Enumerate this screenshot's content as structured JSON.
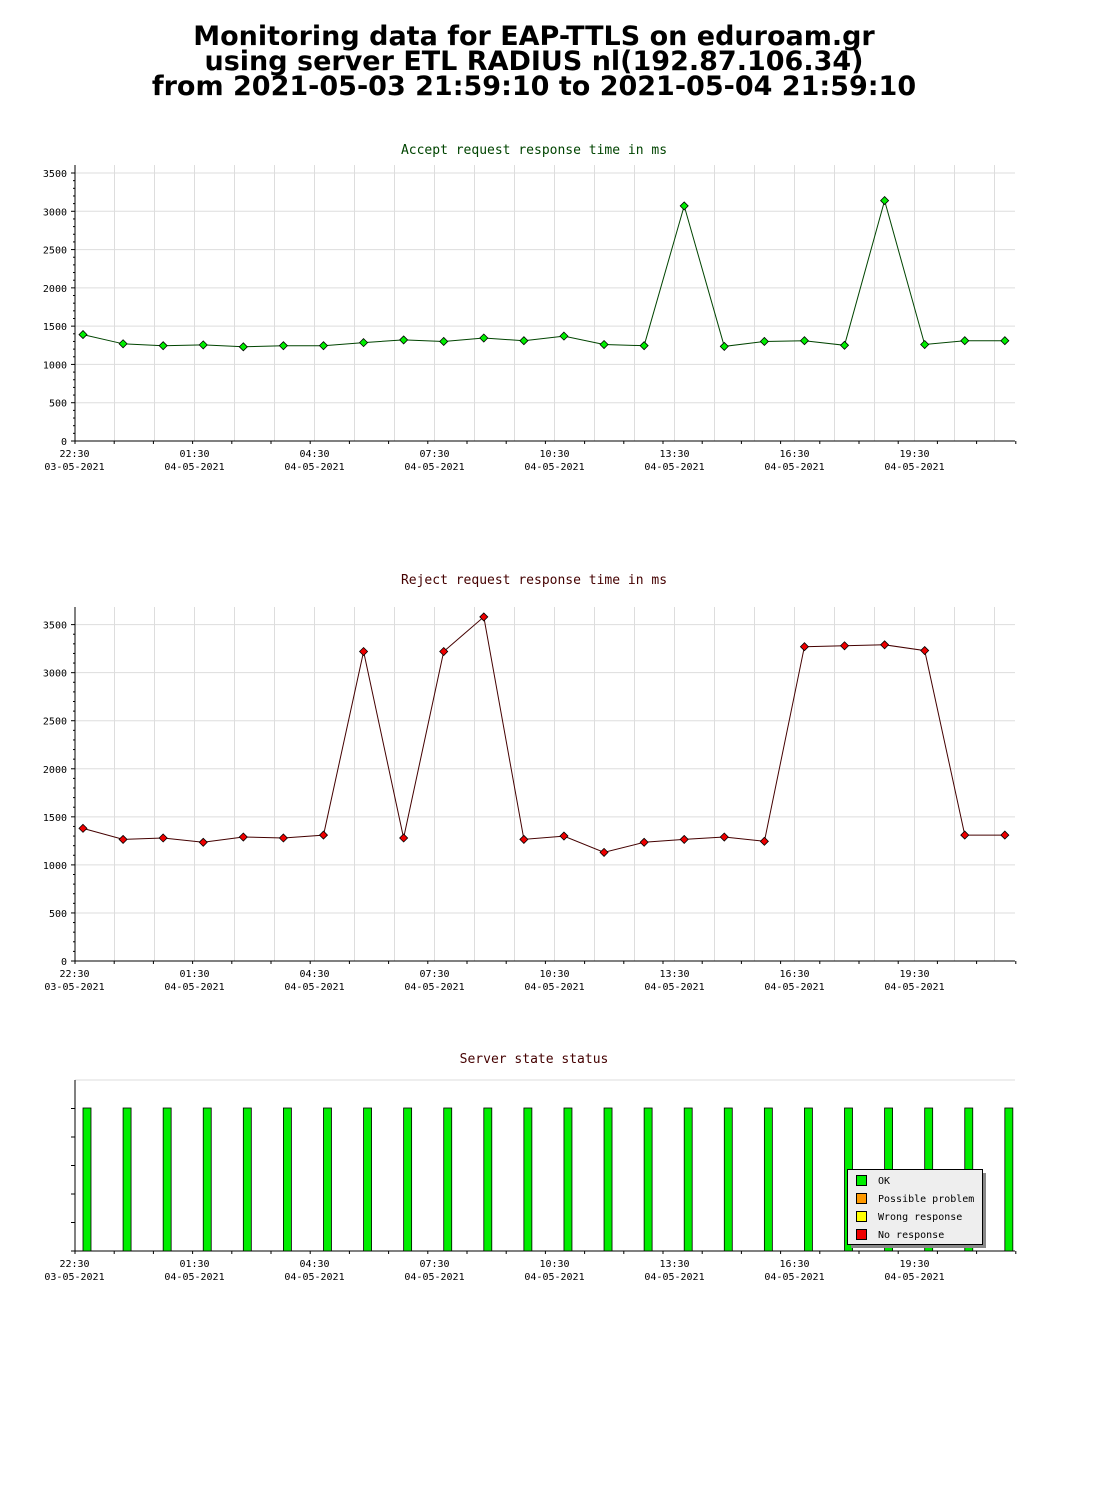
{
  "title": {
    "line1": "Monitoring data for EAP-TTLS on eduroam.gr",
    "line2": "using server ETL RADIUS nl(192.87.106.34)",
    "line3": "from 2021-05-03 21:59:10 to 2021-05-04 21:59:10"
  },
  "colors": {
    "accept_title": "#004400",
    "reject_title": "#440000",
    "status_title": "#440000",
    "accept_marker": "#00ee00",
    "accept_line": "#004400",
    "reject_marker": "#ee0000",
    "reject_line": "#440000",
    "ok": "#00ee00",
    "possible_problem": "#ff9900",
    "wrong_response": "#ffff00",
    "no_response": "#ee0000",
    "grid": "#dddddd"
  },
  "time_axis": {
    "ticks": [
      {
        "time": "22:30",
        "date": "03-05-2021"
      },
      {
        "time": "01:30",
        "date": "04-05-2021"
      },
      {
        "time": "04:30",
        "date": "04-05-2021"
      },
      {
        "time": "07:30",
        "date": "04-05-2021"
      },
      {
        "time": "10:30",
        "date": "04-05-2021"
      },
      {
        "time": "13:30",
        "date": "04-05-2021"
      },
      {
        "time": "16:30",
        "date": "04-05-2021"
      },
      {
        "time": "19:30",
        "date": "04-05-2021"
      }
    ]
  },
  "legend": {
    "ok": "OK",
    "possible_problem": "Possible problem",
    "wrong_response": "Wrong response",
    "no_response": "No response"
  },
  "chart_data": [
    {
      "type": "line",
      "title": "Accept request response time in ms",
      "ylim": [
        0,
        3500
      ],
      "yticks": [
        0,
        500,
        1000,
        1500,
        2000,
        2500,
        3000,
        3500
      ],
      "x": [
        "22:00",
        "23:00",
        "00:00",
        "01:00",
        "02:00",
        "03:00",
        "04:00",
        "05:00",
        "06:00",
        "07:00",
        "08:00",
        "09:00",
        "10:00",
        "11:00",
        "12:00",
        "13:00",
        "14:00",
        "15:00",
        "16:00",
        "17:00",
        "18:00",
        "19:00",
        "20:00",
        "21:00"
      ],
      "values": [
        1390,
        1270,
        1245,
        1255,
        1230,
        1245,
        1245,
        1285,
        1320,
        1300,
        1345,
        1310,
        1370,
        1260,
        1245,
        3070,
        1235,
        1300,
        1310,
        1250,
        3140,
        1260,
        1310,
        1310
      ],
      "grid": true
    },
    {
      "type": "line",
      "title": "Reject request response time in ms",
      "ylim": [
        0,
        3600
      ],
      "yticks": [
        0,
        500,
        1000,
        1500,
        2000,
        2500,
        3000,
        3500
      ],
      "x": [
        "22:00",
        "23:00",
        "00:00",
        "01:00",
        "02:00",
        "03:00",
        "04:00",
        "05:00",
        "06:00",
        "07:00",
        "08:00",
        "09:00",
        "10:00",
        "11:00",
        "12:00",
        "13:00",
        "14:00",
        "15:00",
        "16:00",
        "17:00",
        "18:00",
        "19:00",
        "20:00",
        "21:00"
      ],
      "values": [
        1380,
        1265,
        1280,
        1235,
        1290,
        1280,
        1310,
        3220,
        1280,
        3220,
        3580,
        1265,
        1300,
        1130,
        1235,
        1265,
        1290,
        1245,
        3270,
        3280,
        3290,
        3230,
        1310,
        1310
      ],
      "grid": true
    },
    {
      "type": "bar",
      "title": "Server state status",
      "x": [
        "22:00",
        "23:00",
        "00:00",
        "01:00",
        "02:00",
        "03:00",
        "04:00",
        "05:00",
        "06:00",
        "07:00",
        "08:00",
        "09:00",
        "10:00",
        "11:00",
        "12:00",
        "13:00",
        "14:00",
        "15:00",
        "16:00",
        "17:00",
        "18:00",
        "19:00",
        "20:00",
        "21:00"
      ],
      "states": [
        "OK",
        "OK",
        "OK",
        "OK",
        "OK",
        "OK",
        "OK",
        "OK",
        "OK",
        "OK",
        "OK",
        "OK",
        "OK",
        "OK",
        "OK",
        "OK",
        "OK",
        "OK",
        "OK",
        "OK",
        "OK",
        "OK",
        "OK",
        "OK"
      ],
      "legend_position": "bottom-right"
    }
  ]
}
